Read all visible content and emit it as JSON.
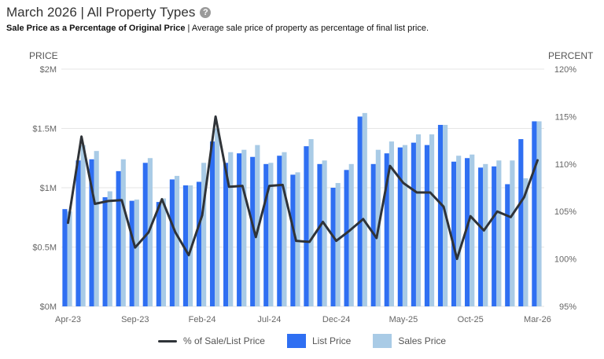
{
  "header": {
    "title": "March 2026 | All Property Types",
    "subtitle_bold": "Sale Price as a Percentage of Original Price",
    "subtitle_rest": " | Average sale price of property as percentage of final list price.",
    "help_icon": "question-circle-icon"
  },
  "colors": {
    "list_price": "#2f6ff2",
    "sales_price": "#a9cbe6",
    "ratio_line": "#2f3338",
    "grid": "#e6e6e6"
  },
  "legend": {
    "line_label": "% of Sale/List Price",
    "list_label": "List Price",
    "sales_label": "Sales Price"
  },
  "chart_data": {
    "type": "bar",
    "left_axis_title": "PRICE",
    "right_axis_title": "PERCENT",
    "left_ticks": [
      "$0M",
      "$0.5M",
      "$1M",
      "$1.5M",
      "$2M"
    ],
    "right_ticks": [
      "95%",
      "100%",
      "105%",
      "110%",
      "115%",
      "120%"
    ],
    "ylim_left": [
      0,
      2000000
    ],
    "ylim_right": [
      95,
      120
    ],
    "grid": true,
    "legend_position": "bottom",
    "x_tick_labels": [
      "Apr-23",
      "Sep-23",
      "Feb-24",
      "Jul-24",
      "Dec-24",
      "May-25",
      "Oct-25",
      "Mar-26"
    ],
    "categories": [
      "Apr-23",
      "May-23",
      "Jun-23",
      "Jul-23",
      "Aug-23",
      "Sep-23",
      "Oct-23",
      "Nov-23",
      "Dec-23",
      "Jan-24",
      "Feb-24",
      "Mar-24",
      "Apr-24",
      "May-24",
      "Jun-24",
      "Jul-24",
      "Aug-24",
      "Sep-24",
      "Oct-24",
      "Nov-24",
      "Dec-24",
      "Jan-25",
      "Feb-25",
      "Mar-25",
      "Apr-25",
      "May-25",
      "Jun-25",
      "Jul-25",
      "Aug-25",
      "Sep-25",
      "Oct-25",
      "Nov-25",
      "Dec-25",
      "Jan-26",
      "Feb-26",
      "Mar-26"
    ],
    "series": [
      {
        "name": "List Price",
        "kind": "bar",
        "values": [
          820000,
          1230000,
          1240000,
          920000,
          1140000,
          890000,
          1210000,
          880000,
          1070000,
          1020000,
          1050000,
          1390000,
          1210000,
          1290000,
          1260000,
          1200000,
          1270000,
          1110000,
          1350000,
          1200000,
          1000000,
          1150000,
          1600000,
          1200000,
          1290000,
          1340000,
          1380000,
          1360000,
          1530000,
          1220000,
          1250000,
          1170000,
          1180000,
          1030000,
          1410000,
          1560000
        ]
      },
      {
        "name": "Sales Price",
        "kind": "bar",
        "values": [
          800000,
          1360000,
          1310000,
          970000,
          1240000,
          900000,
          1250000,
          910000,
          1100000,
          1020000,
          1210000,
          1500000,
          1300000,
          1320000,
          1360000,
          1210000,
          1300000,
          1130000,
          1410000,
          1230000,
          1040000,
          1200000,
          1630000,
          1320000,
          1390000,
          1360000,
          1450000,
          1450000,
          1530000,
          1270000,
          1280000,
          1200000,
          1230000,
          1230000,
          1080000,
          1560000
        ]
      },
      {
        "name": "% of Sale/List Price",
        "kind": "line",
        "axis": "right",
        "values": [
          103.8,
          112.9,
          105.8,
          106.1,
          106.2,
          101.2,
          102.8,
          106.3,
          102.8,
          100.4,
          104.6,
          115.0,
          107.6,
          107.7,
          102.3,
          107.7,
          107.8,
          101.9,
          101.8,
          103.9,
          101.9,
          103.0,
          104.2,
          102.2,
          109.8,
          108.0,
          107.0,
          107.0,
          105.5,
          100.0,
          104.5,
          103.0,
          105.0,
          104.4,
          106.5,
          110.4
        ]
      }
    ]
  }
}
